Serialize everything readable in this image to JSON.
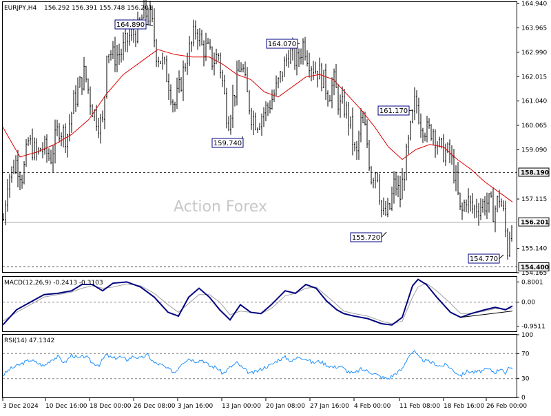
{
  "header": {
    "symbol": "EURJPY,H4",
    "ohlc": "156.292 156.391 155.748 156.201"
  },
  "watermark": "Action Forex",
  "colors": {
    "background": "#ffffff",
    "candles": "#000000",
    "ma": "#e00000",
    "macd_main": "#000080",
    "macd_signal": "#a0a0a0",
    "rsi": "#1e90ff",
    "label_border": "#000080",
    "grid_dash": "#808080"
  },
  "chart_data": [
    {
      "type": "candlestick",
      "panel": "price",
      "title": "EURJPY,H4",
      "y_ticks": [
        "164.940",
        "163.965",
        "162.990",
        "162.015",
        "161.040",
        "160.065",
        "159.090",
        "157.115",
        "155.140",
        "154.165"
      ],
      "ylim": [
        154.165,
        165.0
      ],
      "horizontal_lines": [
        {
          "value": 158.19,
          "label": "158.190",
          "style": "dashed"
        },
        {
          "value": 154.4,
          "label": "154.400",
          "style": "dashed"
        },
        {
          "value": 156.201,
          "label": "156.201",
          "style": "solid",
          "boxed": true
        }
      ],
      "swing_labels": [
        {
          "label": "164.890",
          "value": 164.89,
          "date": "27 Dec 2024"
        },
        {
          "label": "159.740",
          "value": 159.74,
          "date": "13 Jan 2025"
        },
        {
          "label": "164.070",
          "value": 164.07,
          "date": "24 Jan 2025"
        },
        {
          "label": "155.720",
          "value": 155.72,
          "date": "4 Feb 2025"
        },
        {
          "label": "161.170",
          "value": 161.17,
          "date": "11 Feb 2025"
        },
        {
          "label": "154.770",
          "value": 154.77,
          "date": "27 Feb 2025"
        }
      ],
      "anchors": [
        [
          0,
          156.3
        ],
        [
          6,
          157.9
        ],
        [
          18,
          158.6
        ],
        [
          28,
          158.0
        ],
        [
          36,
          159.4
        ],
        [
          48,
          158.9
        ],
        [
          58,
          159.2
        ],
        [
          68,
          158.7
        ],
        [
          80,
          160.0
        ],
        [
          92,
          159.6
        ],
        [
          102,
          161.0
        ],
        [
          118,
          162.2
        ],
        [
          128,
          160.8
        ],
        [
          138,
          160.2
        ],
        [
          145,
          160.1
        ],
        [
          150,
          163.2
        ],
        [
          160,
          162.8
        ],
        [
          172,
          163.0
        ],
        [
          182,
          163.6
        ],
        [
          196,
          163.9
        ],
        [
          204,
          164.6
        ],
        [
          214,
          164.4
        ],
        [
          222,
          163.0
        ],
        [
          232,
          162.5
        ],
        [
          240,
          161.8
        ],
        [
          248,
          160.8
        ],
        [
          256,
          161.6
        ],
        [
          266,
          162.8
        ],
        [
          272,
          163.2
        ],
        [
          280,
          164.0
        ],
        [
          288,
          163.2
        ],
        [
          296,
          163.1
        ],
        [
          304,
          162.6
        ],
        [
          312,
          162.9
        ],
        [
          318,
          161.8
        ],
        [
          326,
          160.2
        ],
        [
          336,
          161.5
        ],
        [
          346,
          162.6
        ],
        [
          352,
          161.5
        ],
        [
          360,
          160.5
        ],
        [
          368,
          160.2
        ],
        [
          378,
          160.6
        ],
        [
          386,
          160.9
        ],
        [
          396,
          161.5
        ],
        [
          406,
          162.3
        ],
        [
          414,
          163.0
        ],
        [
          426,
          162.6
        ],
        [
          436,
          163.4
        ],
        [
          442,
          162.8
        ],
        [
          450,
          162.4
        ],
        [
          458,
          162.2
        ],
        [
          464,
          161.9
        ],
        [
          472,
          161.3
        ],
        [
          480,
          161.8
        ],
        [
          488,
          160.8
        ],
        [
          496,
          160.8
        ],
        [
          504,
          160.0
        ],
        [
          512,
          158.6
        ],
        [
          518,
          160.2
        ],
        [
          526,
          159.8
        ],
        [
          534,
          158.0
        ],
        [
          542,
          158.4
        ],
        [
          550,
          156.4
        ],
        [
          560,
          156.6
        ],
        [
          568,
          157.8
        ],
        [
          576,
          157.2
        ],
        [
          584,
          158.6
        ],
        [
          592,
          160.0
        ],
        [
          598,
          161.1
        ],
        [
          606,
          160.2
        ],
        [
          616,
          159.8
        ],
        [
          624,
          159.9
        ],
        [
          632,
          159.2
        ],
        [
          640,
          159.0
        ],
        [
          648,
          158.9
        ],
        [
          656,
          158.0
        ],
        [
          664,
          156.4
        ],
        [
          672,
          157.2
        ],
        [
          680,
          156.7
        ],
        [
          688,
          156.8
        ],
        [
          696,
          156.9
        ],
        [
          704,
          157.0
        ],
        [
          712,
          156.6
        ],
        [
          720,
          157.2
        ],
        [
          726,
          156.5
        ],
        [
          732,
          155.1
        ],
        [
          738,
          156.4
        ],
        [
          740,
          156.2
        ]
      ],
      "moving_average": [
        [
          0,
          160.0
        ],
        [
          25,
          158.8
        ],
        [
          50,
          159.0
        ],
        [
          75,
          159.3
        ],
        [
          100,
          159.7
        ],
        [
          125,
          160.3
        ],
        [
          150,
          161.3
        ],
        [
          175,
          162.1
        ],
        [
          200,
          162.6
        ],
        [
          225,
          163.1
        ],
        [
          250,
          162.9
        ],
        [
          275,
          162.8
        ],
        [
          300,
          162.8
        ],
        [
          320,
          162.5
        ],
        [
          340,
          162.1
        ],
        [
          360,
          161.9
        ],
        [
          380,
          161.4
        ],
        [
          400,
          161.2
        ],
        [
          420,
          161.6
        ],
        [
          440,
          162.0
        ],
        [
          460,
          162.1
        ],
        [
          480,
          161.9
        ],
        [
          500,
          161.3
        ],
        [
          520,
          160.7
        ],
        [
          540,
          160.0
        ],
        [
          560,
          159.2
        ],
        [
          580,
          158.7
        ],
        [
          600,
          159.1
        ],
        [
          620,
          159.3
        ],
        [
          640,
          159.2
        ],
        [
          660,
          158.7
        ],
        [
          680,
          158.3
        ],
        [
          700,
          157.8
        ],
        [
          720,
          157.4
        ],
        [
          740,
          157.0
        ]
      ]
    },
    {
      "type": "line",
      "panel": "macd",
      "title": "MACD(12,26,9) -0.2413 -0.3103",
      "y_ticks": [
        "0.8001",
        "0.00",
        "-0.9511"
      ],
      "ylim": [
        -1.15,
        1.0
      ],
      "main": [
        [
          0,
          -0.9
        ],
        [
          20,
          -0.3
        ],
        [
          40,
          0.0
        ],
        [
          60,
          0.3
        ],
        [
          80,
          0.35
        ],
        [
          100,
          0.45
        ],
        [
          115,
          0.7
        ],
        [
          130,
          0.7
        ],
        [
          145,
          0.45
        ],
        [
          160,
          0.75
        ],
        [
          180,
          0.8
        ],
        [
          200,
          0.6
        ],
        [
          220,
          0.2
        ],
        [
          240,
          -0.4
        ],
        [
          255,
          -0.55
        ],
        [
          270,
          0.2
        ],
        [
          285,
          0.55
        ],
        [
          300,
          0.2
        ],
        [
          315,
          -0.3
        ],
        [
          330,
          -0.7
        ],
        [
          345,
          -0.1
        ],
        [
          360,
          -0.4
        ],
        [
          375,
          -0.45
        ],
        [
          390,
          -0.1
        ],
        [
          410,
          0.45
        ],
        [
          425,
          0.35
        ],
        [
          440,
          0.7
        ],
        [
          455,
          0.55
        ],
        [
          470,
          0.05
        ],
        [
          485,
          -0.3
        ],
        [
          495,
          -0.45
        ],
        [
          510,
          -0.55
        ],
        [
          530,
          -0.65
        ],
        [
          550,
          -0.85
        ],
        [
          565,
          -0.9
        ],
        [
          580,
          -0.6
        ],
        [
          595,
          0.65
        ],
        [
          603,
          0.9
        ],
        [
          615,
          0.7
        ],
        [
          630,
          0.2
        ],
        [
          650,
          -0.4
        ],
        [
          665,
          -0.6
        ],
        [
          680,
          -0.45
        ],
        [
          700,
          -0.3
        ],
        [
          715,
          -0.2
        ],
        [
          730,
          -0.3
        ],
        [
          740,
          -0.15
        ]
      ],
      "signal": [
        [
          0,
          -0.75
        ],
        [
          20,
          -0.4
        ],
        [
          40,
          -0.1
        ],
        [
          60,
          0.2
        ],
        [
          80,
          0.3
        ],
        [
          100,
          0.4
        ],
        [
          115,
          0.55
        ],
        [
          130,
          0.65
        ],
        [
          145,
          0.55
        ],
        [
          160,
          0.6
        ],
        [
          180,
          0.72
        ],
        [
          200,
          0.65
        ],
        [
          220,
          0.35
        ],
        [
          240,
          -0.1
        ],
        [
          255,
          -0.4
        ],
        [
          270,
          -0.05
        ],
        [
          285,
          0.3
        ],
        [
          300,
          0.3
        ],
        [
          315,
          0.0
        ],
        [
          330,
          -0.5
        ],
        [
          345,
          -0.35
        ],
        [
          360,
          -0.4
        ],
        [
          375,
          -0.45
        ],
        [
          390,
          -0.25
        ],
        [
          410,
          0.25
        ],
        [
          425,
          0.35
        ],
        [
          440,
          0.55
        ],
        [
          455,
          0.6
        ],
        [
          470,
          0.25
        ],
        [
          485,
          -0.1
        ],
        [
          495,
          -0.35
        ],
        [
          510,
          -0.45
        ],
        [
          530,
          -0.55
        ],
        [
          550,
          -0.75
        ],
        [
          565,
          -0.85
        ],
        [
          580,
          -0.75
        ],
        [
          595,
          0.2
        ],
        [
          603,
          0.6
        ],
        [
          615,
          0.75
        ],
        [
          630,
          0.45
        ],
        [
          650,
          -0.05
        ],
        [
          665,
          -0.45
        ],
        [
          680,
          -0.45
        ],
        [
          700,
          -0.35
        ],
        [
          715,
          -0.25
        ],
        [
          730,
          -0.27
        ],
        [
          740,
          -0.25
        ]
      ],
      "trendline": [
        [
          665,
          -0.6
        ],
        [
          740,
          -0.35
        ]
      ]
    },
    {
      "type": "line",
      "panel": "rsi",
      "title": "RSI(14) 47.1342",
      "y_ticks": [
        "100",
        "70",
        "30",
        "0"
      ],
      "ylim": [
        0,
        100
      ],
      "levels": [
        70,
        30
      ],
      "values": [
        [
          0,
          35
        ],
        [
          10,
          45
        ],
        [
          20,
          50
        ],
        [
          30,
          55
        ],
        [
          40,
          60
        ],
        [
          50,
          55
        ],
        [
          60,
          50
        ],
        [
          70,
          60
        ],
        [
          80,
          65
        ],
        [
          90,
          55
        ],
        [
          100,
          68
        ],
        [
          110,
          62
        ],
        [
          120,
          66
        ],
        [
          130,
          55
        ],
        [
          140,
          52
        ],
        [
          150,
          68
        ],
        [
          160,
          62
        ],
        [
          170,
          65
        ],
        [
          180,
          60
        ],
        [
          190,
          66
        ],
        [
          200,
          62
        ],
        [
          210,
          68
        ],
        [
          220,
          55
        ],
        [
          230,
          52
        ],
        [
          240,
          45
        ],
        [
          250,
          40
        ],
        [
          260,
          55
        ],
        [
          270,
          62
        ],
        [
          280,
          58
        ],
        [
          290,
          60
        ],
        [
          300,
          50
        ],
        [
          310,
          48
        ],
        [
          320,
          38
        ],
        [
          330,
          48
        ],
        [
          340,
          55
        ],
        [
          350,
          45
        ],
        [
          360,
          38
        ],
        [
          370,
          42
        ],
        [
          380,
          48
        ],
        [
          390,
          52
        ],
        [
          400,
          60
        ],
        [
          410,
          64
        ],
        [
          420,
          58
        ],
        [
          430,
          65
        ],
        [
          440,
          62
        ],
        [
          450,
          55
        ],
        [
          460,
          58
        ],
        [
          470,
          52
        ],
        [
          480,
          48
        ],
        [
          490,
          50
        ],
        [
          500,
          42
        ],
        [
          510,
          38
        ],
        [
          520,
          45
        ],
        [
          530,
          42
        ],
        [
          540,
          38
        ],
        [
          550,
          32
        ],
        [
          560,
          30
        ],
        [
          570,
          38
        ],
        [
          580,
          45
        ],
        [
          590,
          68
        ],
        [
          597,
          74
        ],
        [
          605,
          62
        ],
        [
          615,
          58
        ],
        [
          625,
          55
        ],
        [
          635,
          50
        ],
        [
          645,
          52
        ],
        [
          655,
          42
        ],
        [
          665,
          35
        ],
        [
          675,
          42
        ],
        [
          685,
          40
        ],
        [
          695,
          42
        ],
        [
          705,
          45
        ],
        [
          715,
          40
        ],
        [
          725,
          48
        ],
        [
          730,
          35
        ],
        [
          735,
          48
        ],
        [
          740,
          47
        ]
      ]
    }
  ],
  "x_axis": {
    "labels": [
      "3 Dec 2024",
      "10 Dec 16:00",
      "18 Dec 00:00",
      "26 Dec 08:00",
      "3 Jan 16:00",
      "13 Jan 00:00",
      "20 Jan 08:00",
      "27 Jan 16:00",
      "4 Feb 00:00",
      "11 Feb 08:00",
      "18 Feb 16:00",
      "26 Feb 00:00"
    ]
  }
}
